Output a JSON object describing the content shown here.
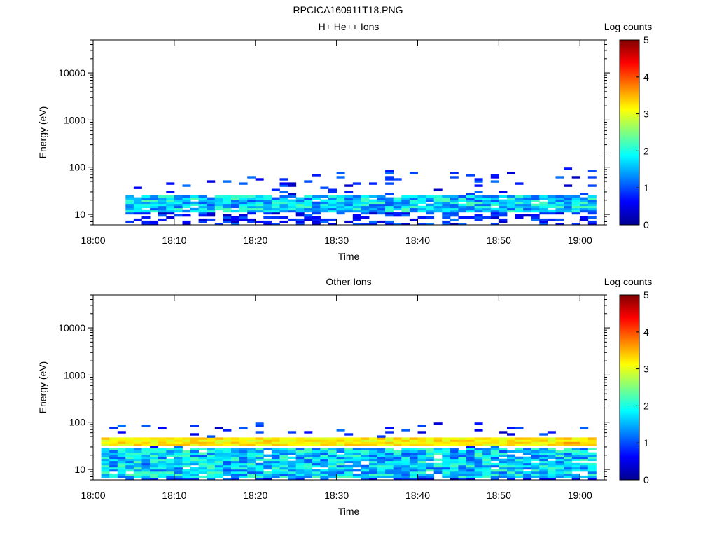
{
  "figure_title": "RPCICA160911T18.PNG",
  "chart_data": [
    {
      "type": "heatmap",
      "title": "H+ He++ Ions",
      "xlabel": "Time",
      "ylabel": "Energy (eV)",
      "x_ticks": [
        "18:00",
        "18:10",
        "18:20",
        "18:30",
        "18:40",
        "18:50",
        "19:00"
      ],
      "x_range_minutes": [
        0,
        63
      ],
      "y_scale": "log",
      "y_range": [
        6,
        50000
      ],
      "y_ticks": [
        10,
        100,
        1000,
        10000
      ],
      "y_tick_labels": [
        "10",
        "100",
        "1000",
        "10000"
      ],
      "colorbar": {
        "label": "Log counts",
        "range": [
          0,
          5
        ],
        "ticks": [
          "0",
          "1",
          "2",
          "3",
          "4",
          "5"
        ]
      },
      "data_summary": {
        "time_start_minutes": 4,
        "time_end_minutes": 62,
        "core_band_energy_eV": [
          11,
          25
        ],
        "core_band_log_counts": [
          1.0,
          2.3
        ],
        "sparse_counts_up_to_eV": 95
      }
    },
    {
      "type": "heatmap",
      "title": "Other Ions",
      "xlabel": "Time",
      "ylabel": "Energy (eV)",
      "x_ticks": [
        "18:00",
        "18:10",
        "18:20",
        "18:30",
        "18:40",
        "18:50",
        "19:00"
      ],
      "x_range_minutes": [
        0,
        63
      ],
      "y_scale": "log",
      "y_range": [
        6,
        50000
      ],
      "y_ticks": [
        10,
        100,
        1000,
        10000
      ],
      "y_tick_labels": [
        "10",
        "100",
        "1000",
        "10000"
      ],
      "colorbar": {
        "label": "Log counts",
        "range": [
          0,
          5
        ],
        "ticks": [
          "0",
          "1",
          "2",
          "3",
          "4",
          "5"
        ]
      },
      "data_summary": {
        "time_start_minutes": 1,
        "time_end_minutes": 62,
        "upper_band_energy_eV": [
          30,
          48
        ],
        "upper_band_log_counts": [
          2.5,
          3.7
        ],
        "lower_band_energy_eV": [
          7,
          28
        ],
        "lower_band_log_counts": [
          1.0,
          2.3
        ],
        "sparse_counts_up_to_eV": 95
      }
    }
  ]
}
